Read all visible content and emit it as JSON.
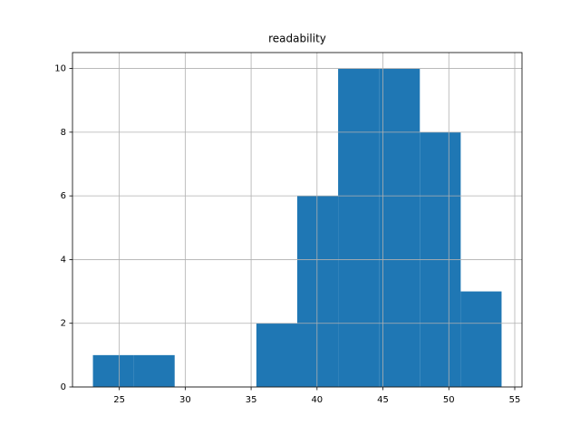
{
  "chart_data": {
    "type": "histogram",
    "title": "readability",
    "bins": [
      23.0,
      26.1,
      29.2,
      32.3,
      35.4,
      38.5,
      41.6,
      44.7,
      47.8,
      50.9,
      54.0
    ],
    "counts": [
      1,
      1,
      0,
      0,
      2,
      6,
      10,
      10,
      8,
      3
    ],
    "color": "#1f77b4",
    "xlim": [
      21.45,
      55.55
    ],
    "xticks": [
      25,
      30,
      35,
      40,
      45,
      50,
      55
    ],
    "ylim": [
      0,
      10.5
    ],
    "yticks": [
      0,
      2,
      4,
      6,
      8,
      10
    ],
    "grid": true
  }
}
